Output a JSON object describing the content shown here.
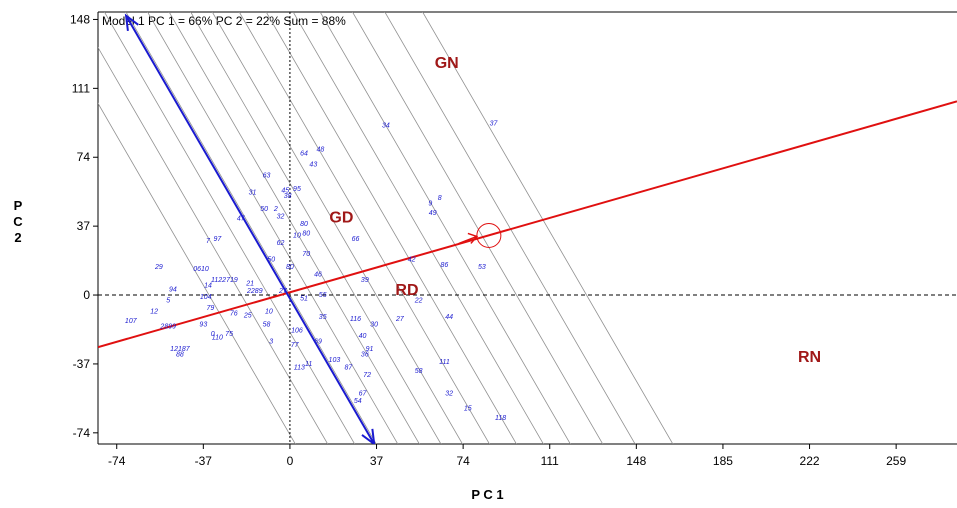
{
  "chart_data": {
    "type": "scatter",
    "title": "Model 1 PC 1 = 66% PC 2 = 22% Sum = 88%",
    "xlabel": "P C 1",
    "ylabel_lines": [
      "P",
      "C",
      "2"
    ],
    "xlim": [
      -82,
      285
    ],
    "ylim": [
      -80,
      152
    ],
    "x_ticks": [
      -74,
      -37,
      0,
      37,
      74,
      111,
      148,
      185,
      222,
      259
    ],
    "y_ticks": [
      -74,
      -37,
      0,
      37,
      74,
      111,
      148
    ],
    "x_tick_labels": [
      "-74",
      "-37",
      "0",
      "37",
      "74",
      "111",
      "148",
      "185",
      "222",
      "259"
    ],
    "y_tick_labels": [
      "-74",
      "-37",
      "0",
      "37",
      "74",
      "111",
      "148"
    ],
    "environments": [
      {
        "name": "GN",
        "x": 67,
        "y": 122
      },
      {
        "name": "GD",
        "x": 22,
        "y": 39
      },
      {
        "name": "RD",
        "x": 50,
        "y": 0
      },
      {
        "name": "RN",
        "x": 222,
        "y": -36
      }
    ],
    "genotypes": [
      {
        "label": "34",
        "x": 41,
        "y": 90
      },
      {
        "label": "37",
        "x": 87,
        "y": 91
      },
      {
        "label": "48",
        "x": 13,
        "y": 77
      },
      {
        "label": "64",
        "x": 6,
        "y": 75
      },
      {
        "label": "43",
        "x": 10,
        "y": 69
      },
      {
        "label": "63",
        "x": -10,
        "y": 63
      },
      {
        "label": "95",
        "x": 3,
        "y": 56
      },
      {
        "label": "45",
        "x": -2,
        "y": 55
      },
      {
        "label": "31",
        "x": -16,
        "y": 54
      },
      {
        "label": "38",
        "x": -1,
        "y": 52
      },
      {
        "label": "8",
        "x": 64,
        "y": 51
      },
      {
        "label": "9",
        "x": 60,
        "y": 48
      },
      {
        "label": "49",
        "x": 61,
        "y": 43
      },
      {
        "label": "50",
        "x": -11,
        "y": 45
      },
      {
        "label": "2",
        "x": -6,
        "y": 45
      },
      {
        "label": "32",
        "x": -4,
        "y": 41
      },
      {
        "label": "47",
        "x": -21,
        "y": 40
      },
      {
        "label": "80",
        "x": 6,
        "y": 37
      },
      {
        "label": "80",
        "x": 7,
        "y": 32
      },
      {
        "label": "10",
        "x": 3,
        "y": 31
      },
      {
        "label": "66",
        "x": 28,
        "y": 29
      },
      {
        "label": "97",
        "x": -31,
        "y": 29
      },
      {
        "label": "7",
        "x": -35,
        "y": 28
      },
      {
        "label": "62",
        "x": -4,
        "y": 27
      },
      {
        "label": "70",
        "x": 7,
        "y": 21
      },
      {
        "label": "42",
        "x": 52,
        "y": 18
      },
      {
        "label": "86",
        "x": 66,
        "y": 15
      },
      {
        "label": "53",
        "x": 82,
        "y": 14
      },
      {
        "label": "29",
        "x": -56,
        "y": 14
      },
      {
        "label": "0610",
        "x": -38,
        "y": 13
      },
      {
        "label": "50",
        "x": -8,
        "y": 18
      },
      {
        "label": "80",
        "x": 0,
        "y": 14
      },
      {
        "label": "46",
        "x": 12,
        "y": 10
      },
      {
        "label": "39",
        "x": 32,
        "y": 7
      },
      {
        "label": "1122719",
        "x": -28,
        "y": 7
      },
      {
        "label": "14",
        "x": -35,
        "y": 4
      },
      {
        "label": "94",
        "x": -50,
        "y": 2
      },
      {
        "label": "21",
        "x": -17,
        "y": 5
      },
      {
        "label": "2289",
        "x": -15,
        "y": 1
      },
      {
        "label": "27",
        "x": -3,
        "y": 1
      },
      {
        "label": "55",
        "x": 14,
        "y": -1
      },
      {
        "label": "51",
        "x": 6,
        "y": -3
      },
      {
        "label": "104",
        "x": -36,
        "y": -2
      },
      {
        "label": "5",
        "x": -52,
        "y": -4
      },
      {
        "label": "22",
        "x": 55,
        "y": -4
      },
      {
        "label": "79",
        "x": -34,
        "y": -8
      },
      {
        "label": "12",
        "x": -58,
        "y": -10
      },
      {
        "label": "76",
        "x": -24,
        "y": -11
      },
      {
        "label": "25",
        "x": -18,
        "y": -12
      },
      {
        "label": "10",
        "x": -9,
        "y": -10
      },
      {
        "label": "35",
        "x": 14,
        "y": -13
      },
      {
        "label": "116",
        "x": 28,
        "y": -14
      },
      {
        "label": "27",
        "x": 47,
        "y": -14
      },
      {
        "label": "44",
        "x": 68,
        "y": -13
      },
      {
        "label": "107",
        "x": -68,
        "y": -15
      },
      {
        "label": "2899",
        "x": -52,
        "y": -18
      },
      {
        "label": "93",
        "x": -37,
        "y": -17
      },
      {
        "label": "58",
        "x": -10,
        "y": -17
      },
      {
        "label": "106",
        "x": 3,
        "y": -20
      },
      {
        "label": "30",
        "x": 36,
        "y": -17
      },
      {
        "label": "40",
        "x": 31,
        "y": -23
      },
      {
        "label": "0",
        "x": -33,
        "y": -22
      },
      {
        "label": "75",
        "x": -26,
        "y": -22
      },
      {
        "label": "110",
        "x": -31,
        "y": -24
      },
      {
        "label": "3",
        "x": -8,
        "y": -26
      },
      {
        "label": "77",
        "x": 2,
        "y": -28
      },
      {
        "label": "69",
        "x": 12,
        "y": -26
      },
      {
        "label": "12187",
        "x": -47,
        "y": -30
      },
      {
        "label": "88",
        "x": -47,
        "y": -33
      },
      {
        "label": "91",
        "x": 34,
        "y": -30
      },
      {
        "label": "36",
        "x": 32,
        "y": -33
      },
      {
        "label": "103",
        "x": 19,
        "y": -36
      },
      {
        "label": "111",
        "x": 66,
        "y": -37
      },
      {
        "label": "113",
        "x": 4,
        "y": -40
      },
      {
        "label": "11",
        "x": 8,
        "y": -38
      },
      {
        "label": "87",
        "x": 25,
        "y": -40
      },
      {
        "label": "72",
        "x": 33,
        "y": -44
      },
      {
        "label": "58",
        "x": 55,
        "y": -42
      },
      {
        "label": "67",
        "x": 31,
        "y": -54
      },
      {
        "label": "54",
        "x": 29,
        "y": -58
      },
      {
        "label": "32",
        "x": 68,
        "y": -54
      },
      {
        "label": "15",
        "x": 76,
        "y": -62
      },
      {
        "label": "118",
        "x": 90,
        "y": -67
      }
    ],
    "red_axis": {
      "label": "average environment axis",
      "points": [
        [
          -82,
          -28
        ],
        [
          285,
          104
        ]
      ],
      "marker": [
        85,
        32
      ],
      "marker_radius": 6
    },
    "blue_axis": {
      "points": [
        [
          -70,
          150
        ],
        [
          36,
          -80
        ]
      ],
      "arrow_ends": [
        [
          -71,
          151
        ],
        [
          37,
          -81
        ]
      ]
    },
    "contour_slope": -2.17,
    "contour_intercepts": [
      -75,
      -45,
      -20,
      0,
      20,
      40,
      60,
      80,
      105,
      130,
      155,
      180,
      210,
      240,
      275
    ],
    "colors": {
      "red_axis": "#e01010",
      "blue_axis": "#1a1ad0",
      "env_label": "#a01818",
      "genotype": "#1a1ad0",
      "contours": "#909090",
      "zero_lines": "#000000"
    }
  }
}
